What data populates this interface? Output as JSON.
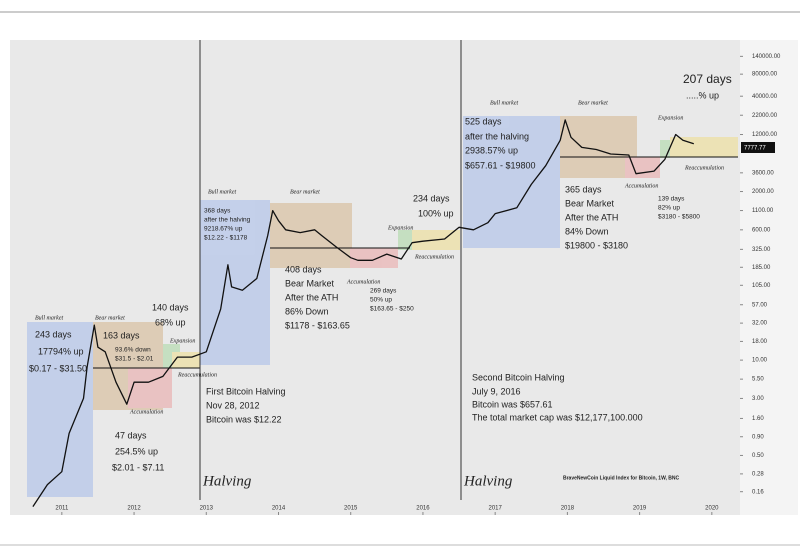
{
  "chart_data": {
    "type": "line",
    "yscale": "log",
    "x": [
      2010.6,
      2010.8,
      2011.0,
      2011.1,
      2011.3,
      2011.35,
      2011.45,
      2011.5,
      2011.6,
      2011.75,
      2011.9,
      2012.0,
      2012.2,
      2012.4,
      2012.6,
      2012.8,
      2013.0,
      2013.2,
      2013.3,
      2013.35,
      2013.5,
      2013.7,
      2013.85,
      2013.92,
      2014.0,
      2014.1,
      2014.3,
      2014.5,
      2014.6,
      2014.8,
      2015.0,
      2015.1,
      2015.3,
      2015.5,
      2015.7,
      2015.85,
      2016.0,
      2016.3,
      2016.5,
      2016.7,
      2016.9,
      2017.0,
      2017.3,
      2017.5,
      2017.7,
      2017.9,
      2017.97,
      2018.05,
      2018.2,
      2018.4,
      2018.6,
      2018.85,
      2018.95,
      2019.2,
      2019.35,
      2019.5,
      2019.6,
      2019.75
    ],
    "series": [
      {
        "color": "#111111",
        "values": [
          0.1,
          0.2,
          0.3,
          1,
          3,
          8,
          30,
          15,
          13,
          5,
          2.5,
          5,
          5,
          6,
          11,
          11,
          13,
          50,
          200,
          100,
          90,
          130,
          500,
          1100,
          800,
          600,
          550,
          600,
          500,
          350,
          250,
          230,
          230,
          280,
          240,
          400,
          420,
          450,
          650,
          600,
          750,
          1000,
          1200,
          2500,
          4500,
          10000,
          19000,
          11000,
          8000,
          7500,
          6500,
          6300,
          3500,
          3800,
          5500,
          12000,
          10000,
          9000
        ]
      }
    ],
    "xlim": [
      2010.31,
      2020.39
    ],
    "xticks": [
      2011,
      2012,
      2013,
      2014,
      2015,
      2016,
      2017,
      2018,
      2019,
      2020
    ],
    "ylim": [
      0.09,
      200000
    ],
    "yticks": [
      {
        "value": 140000,
        "label": "140000.00"
      },
      {
        "value": 80000,
        "label": "80000.00"
      },
      {
        "value": 40000,
        "label": "40000.00"
      },
      {
        "value": 22000,
        "label": "22000.00"
      },
      {
        "value": 12000,
        "label": "12000.00"
      },
      {
        "value": 3600,
        "label": "3600.00"
      },
      {
        "value": 2000,
        "label": "2000.00"
      },
      {
        "value": 1100,
        "label": "1100.00"
      },
      {
        "value": 600,
        "label": "600.00"
      },
      {
        "value": 325,
        "label": "325.00"
      },
      {
        "value": 185,
        "label": "185.00"
      },
      {
        "value": 105,
        "label": "105.00"
      },
      {
        "value": 57,
        "label": "57.00"
      },
      {
        "value": 32,
        "label": "32.00"
      },
      {
        "value": 18,
        "label": "18.00"
      },
      {
        "value": 10,
        "label": "10.00"
      },
      {
        "value": 5.5,
        "label": "5.50"
      },
      {
        "value": 3,
        "label": "3.00"
      },
      {
        "value": 1.6,
        "label": "1.60"
      },
      {
        "value": 0.9,
        "label": "0.90"
      },
      {
        "value": 0.5,
        "label": "0.50"
      },
      {
        "value": 0.28,
        "label": "0.28"
      },
      {
        "value": 0.16,
        "label": "0.16"
      }
    ],
    "price_label": "7777.77",
    "annotations": [
      "207 days",
      ".....% up",
      "Bull market",
      "Bear market",
      "243 days",
      "17794% up",
      "$0.17 - $31.50",
      "163 days",
      "93.6% down",
      "$31.5 - $2.01",
      "140 days",
      "68% up",
      "Expansion",
      "Reaccumulation",
      "Accumulation",
      "47 days",
      "254.5% up",
      "$2.01 - $7.11",
      "Bull market",
      "Bear market",
      "368 days",
      "after the halving",
      "9218.67% up",
      "$12.22 - $1178",
      "408 days",
      "Bear Market",
      "After the ATH",
      "86% Down",
      "$1178 - $163.65",
      "Accumulation",
      "269 days",
      "50% up",
      "$163.65 - $250",
      "Expansion",
      "Reaccumulation",
      "234 days",
      "100% up",
      "First Bitcoin Halving",
      "Nov 28, 2012",
      "Bitcoin was $12.22",
      "Halving",
      "Halving",
      "Bull market",
      "Bear market",
      "525 days",
      "after the halving",
      "2938.57% up",
      "$657.61 - $19800",
      "Expansion",
      "365 days",
      "Bear Market",
      "After the ATH",
      "84% Down",
      "$19800 - $3180",
      "Accumulation",
      "Reaccumulation",
      "139 days",
      "82% up",
      "$3180 - $5800",
      "Second Bitcoin Halving",
      "July 9, 2016",
      "Bitcoin was $657.61",
      "The total market cap was $12,177,100.000",
      "BraveNewCoin Liquid Index for Bitcoin, 1W, BNC"
    ]
  }
}
